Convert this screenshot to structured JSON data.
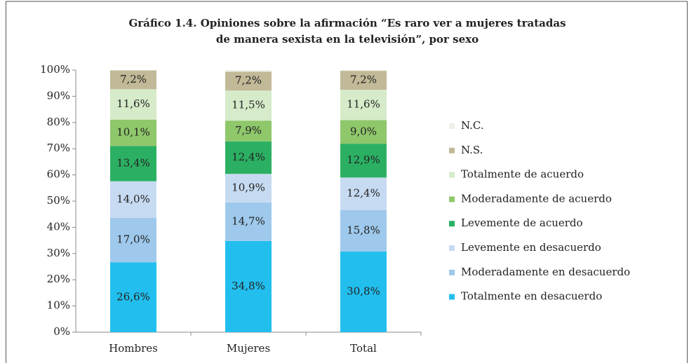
{
  "chart_data": {
    "type": "stacked_bar",
    "title": [
      "Gráfico 1.4. Opiniones sobre la afirmación “Es raro ver a mujeres tratadas",
      "de manera sexista en la televisión”, por sexo"
    ],
    "categories": [
      "Hombres",
      "Mujeres",
      "Total"
    ],
    "series": [
      {
        "name": "Totalmente en desacuerdo",
        "color": "#22bfee",
        "values": [
          26.6,
          34.8,
          30.8
        ],
        "value_labels": [
          "26,6%",
          "34,8%",
          "30,8%"
        ]
      },
      {
        "name": "Moderadamente en desacuerdo",
        "color": "#9ec9ec",
        "values": [
          17.0,
          14.7,
          15.8
        ],
        "value_labels": [
          "17,0%",
          "14,7%",
          "15,8%"
        ]
      },
      {
        "name": "Levemente en desacuerdo",
        "color": "#c6dbf2",
        "values": [
          14.0,
          10.9,
          12.4
        ],
        "value_labels": [
          "14,0%",
          "10,9%",
          "12,4%"
        ]
      },
      {
        "name": "Levemente de acuerdo",
        "color": "#2bb063",
        "values": [
          13.4,
          12.4,
          12.9
        ],
        "value_labels": [
          "13,4%",
          "12,4%",
          "12,9%"
        ]
      },
      {
        "name": "Moderadamente de acuerdo",
        "color": "#8fc76b",
        "values": [
          10.1,
          7.9,
          9.0
        ],
        "value_labels": [
          "10,1%",
          "7,9%",
          "9,0%"
        ]
      },
      {
        "name": "Totalmente de acuerdo",
        "color": "#d6ebc9",
        "values": [
          11.6,
          11.5,
          11.6
        ],
        "value_labels": [
          "11,6%",
          "11,5%",
          "11,6%"
        ]
      },
      {
        "name": "N.S.",
        "color": "#c1b997",
        "values": [
          7.2,
          7.2,
          7.2
        ],
        "value_labels": [
          "7,2%",
          "7,2%",
          "7,2%"
        ]
      },
      {
        "name": "N.C.",
        "color": "#eef0e8",
        "values": [
          0.1,
          0.6,
          0.3
        ]
      }
    ],
    "ylim": [
      0,
      100
    ],
    "yticks": [
      {
        "value": 0,
        "label": "0%"
      },
      {
        "value": 10,
        "label": "10%"
      },
      {
        "value": 20,
        "label": "20%"
      },
      {
        "value": 30,
        "label": "30%"
      },
      {
        "value": 40,
        "label": "40%"
      },
      {
        "value": 50,
        "label": "50%"
      },
      {
        "value": 60,
        "label": "60%"
      },
      {
        "value": 70,
        "label": "70%"
      },
      {
        "value": 80,
        "label": "80%"
      },
      {
        "value": 90,
        "label": "90%"
      },
      {
        "value": 100,
        "label": "100%"
      }
    ],
    "legend": "right"
  }
}
